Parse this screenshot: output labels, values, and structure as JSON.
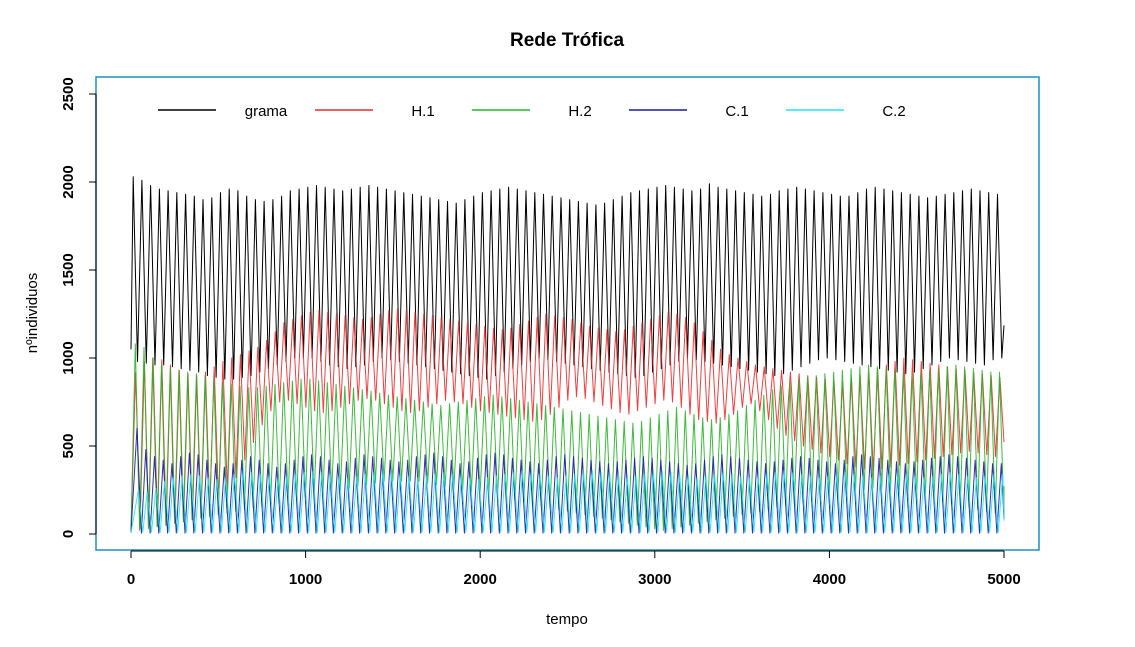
{
  "chart_data": {
    "type": "line",
    "title": "Rede Trófica",
    "xlabel": "tempo",
    "ylabel": "nºindividuos",
    "xlim": [
      0,
      5000
    ],
    "ylim": [
      0,
      2500
    ],
    "x_ticks": [
      "0",
      "1000",
      "2000",
      "3000",
      "4000",
      "5000"
    ],
    "y_ticks": [
      "0",
      "500",
      "1000",
      "1500",
      "2000",
      "2500"
    ],
    "grid": false,
    "legend_position": "top",
    "frame_color": "#1f8fc0",
    "series": [
      {
        "name": "grama",
        "color": "#000000",
        "period": 50,
        "t0": 0,
        "initial": 1050,
        "peaks": [
          2030,
          2010,
          1980,
          1960,
          1950,
          1940,
          1930,
          1920,
          1900,
          1910,
          1940,
          1960,
          1950,
          1920,
          1900,
          1890,
          1900,
          1920,
          1950,
          1960,
          1970,
          1980,
          1970,
          1960,
          1950,
          1960,
          1970,
          1980,
          1970,
          1960,
          1950,
          1940,
          1930,
          1920,
          1910,
          1900,
          1890,
          1880,
          1900,
          1920,
          1940,
          1950,
          1960,
          1970,
          1960,
          1950,
          1940,
          1930,
          1920,
          1910,
          1900,
          1890,
          1880,
          1870,
          1880,
          1900,
          1920,
          1940,
          1950,
          1960,
          1970,
          1980,
          1970,
          1960,
          1950,
          1960,
          1990,
          1970,
          1960,
          1950,
          1940,
          1930,
          1920,
          1930,
          1950,
          1960,
          1970,
          1960,
          1950,
          1940,
          1930,
          1920,
          1920,
          1940,
          1960,
          1970,
          1960,
          1950,
          1940,
          1930,
          1920,
          1910,
          1920,
          1930,
          1940,
          1950,
          1960,
          1950,
          1940,
          1930
        ],
        "troughs": [
          980,
          970,
          960,
          960,
          950,
          940,
          930,
          920,
          900,
          890,
          880,
          880,
          890,
          900,
          920,
          940,
          960,
          980,
          1000,
          1000,
          1000,
          980,
          960,
          950,
          940,
          950,
          960,
          980,
          1000,
          990,
          980,
          970,
          960,
          950,
          940,
          930,
          920,
          910,
          900,
          890,
          880,
          900,
          920,
          940,
          960,
          980,
          1000,
          990,
          980,
          970,
          960,
          950,
          940,
          930,
          920,
          910,
          900,
          890,
          900,
          920,
          940,
          960,
          980,
          1000,
          990,
          980,
          970,
          960,
          950,
          940,
          930,
          920,
          910,
          900,
          910,
          930,
          950,
          970,
          990,
          1000,
          990,
          980,
          970,
          960,
          950,
          940,
          930,
          920,
          910,
          920,
          940,
          960,
          980,
          1000,
          990,
          980,
          970,
          960,
          990,
          1000
        ]
      },
      {
        "name": "H.1",
        "color": "#ee2b2b",
        "period": 50,
        "t0": 14,
        "initial": 30,
        "peaks": [
          920,
          980,
          1000,
          990,
          960,
          930,
          910,
          900,
          920,
          950,
          980,
          1000,
          1020,
          1040,
          1060,
          1100,
          1150,
          1200,
          1220,
          1240,
          1260,
          1270,
          1260,
          1250,
          1240,
          1230,
          1220,
          1230,
          1250,
          1270,
          1280,
          1270,
          1260,
          1250,
          1240,
          1230,
          1220,
          1210,
          1200,
          1190,
          1180,
          1170,
          1160,
          1170,
          1190,
          1210,
          1230,
          1250,
          1240,
          1230,
          1220,
          1200,
          1180,
          1170,
          1160,
          1150,
          1160,
          1180,
          1200,
          1220,
          1240,
          1260,
          1250,
          1230,
          1200,
          1150,
          1100,
          1050,
          1020,
          1000,
          980,
          960,
          950,
          940,
          930,
          920,
          910,
          900,
          890,
          880,
          870,
          860,
          880,
          900,
          920,
          940,
          960,
          980,
          1000,
          990,
          980,
          970,
          960,
          950,
          940,
          930,
          920,
          910,
          900,
          890
        ],
        "troughs": [
          30,
          40,
          45,
          50,
          60,
          70,
          80,
          100,
          130,
          180,
          250,
          320,
          420,
          520,
          620,
          700,
          750,
          760,
          740,
          720,
          700,
          690,
          700,
          720,
          740,
          760,
          770,
          760,
          740,
          720,
          700,
          690,
          700,
          720,
          740,
          760,
          750,
          740,
          720,
          700,
          690,
          680,
          670,
          660,
          650,
          640,
          650,
          680,
          720,
          760,
          780,
          770,
          750,
          730,
          710,
          690,
          680,
          700,
          720,
          740,
          760,
          750,
          720,
          680,
          650,
          640,
          630,
          650,
          680,
          720,
          740,
          700,
          650,
          600,
          560,
          530,
          500,
          480,
          460,
          440,
          420,
          400,
          380,
          370,
          360,
          370,
          380,
          390,
          400,
          410,
          420,
          430,
          440,
          450,
          460,
          470,
          460,
          450,
          440,
          430
        ]
      },
      {
        "name": "H.2",
        "color": "#28b428",
        "period": 50,
        "t0": 12,
        "initial": 20,
        "peaks": [
          1080,
          1060,
          1000,
          960,
          940,
          930,
          920,
          910,
          900,
          880,
          860,
          850,
          840,
          830,
          830,
          840,
          850,
          860,
          870,
          880,
          880,
          870,
          860,
          850,
          840,
          830,
          820,
          810,
          800,
          790,
          780,
          770,
          760,
          750,
          740,
          730,
          740,
          750,
          760,
          770,
          780,
          790,
          780,
          770,
          760,
          750,
          740,
          730,
          720,
          710,
          700,
          690,
          680,
          670,
          660,
          650,
          640,
          630,
          640,
          660,
          680,
          700,
          720,
          700,
          680,
          660,
          650,
          660,
          680,
          700,
          730,
          760,
          790,
          820,
          840,
          860,
          880,
          890,
          900,
          910,
          920,
          930,
          940,
          950,
          960,
          950,
          940,
          930,
          920,
          910,
          920,
          930,
          940,
          950,
          960,
          950,
          940,
          930,
          920,
          920
        ],
        "troughs": [
          20,
          30,
          40,
          50,
          60,
          70,
          80,
          90,
          100,
          110,
          120,
          130,
          140,
          150,
          160,
          170,
          180,
          190,
          200,
          210,
          220,
          230,
          240,
          250,
          260,
          270,
          280,
          290,
          300,
          300,
          300,
          300,
          300,
          290,
          280,
          270,
          260,
          250,
          240,
          230,
          220,
          210,
          200,
          190,
          180,
          170,
          160,
          150,
          140,
          130,
          120,
          110,
          100,
          90,
          80,
          70,
          60,
          50,
          40,
          30,
          20,
          30,
          40,
          50,
          60,
          70,
          80,
          90,
          100,
          110,
          120,
          130,
          140,
          150,
          160,
          170,
          180,
          190,
          200,
          210,
          220,
          230,
          240,
          250,
          260,
          250,
          240,
          230,
          220,
          210,
          200,
          190,
          180,
          170,
          160,
          150,
          140,
          130,
          120,
          110
        ]
      },
      {
        "name": "C.1",
        "color": "#1a1aaa",
        "period": 50,
        "t0": 22,
        "initial": 10,
        "peaks": [
          600,
          480,
          440,
          420,
          400,
          440,
          460,
          450,
          420,
          400,
          380,
          400,
          420,
          440,
          420,
          400,
          380,
          400,
          420,
          440,
          450,
          440,
          420,
          400,
          410,
          430,
          450,
          440,
          430,
          420,
          410,
          420,
          440,
          450,
          460,
          440,
          420,
          400,
          410,
          430,
          450,
          460,
          450,
          430,
          420,
          410,
          400,
          420,
          440,
          450,
          440,
          430,
          420,
          410,
          400,
          410,
          420,
          430,
          440,
          430,
          420,
          410,
          400,
          390,
          400,
          420,
          440,
          450,
          440,
          430,
          420,
          410,
          400,
          410,
          420,
          430,
          440,
          430,
          420,
          410,
          400,
          420,
          440,
          450,
          440,
          430,
          420,
          410,
          400,
          410,
          420,
          430,
          440,
          450,
          440,
          430,
          420,
          410,
          400,
          400
        ],
        "troughs": [
          5,
          5,
          5,
          5,
          5,
          5,
          5,
          5,
          5,
          5,
          5,
          5,
          5,
          5,
          5,
          5,
          5,
          5,
          5,
          5,
          5,
          5,
          5,
          5,
          5,
          5,
          5,
          5,
          5,
          5,
          5,
          5,
          5,
          5,
          5,
          5,
          5,
          5,
          5,
          5,
          5,
          5,
          5,
          5,
          5,
          5,
          5,
          5,
          5,
          5,
          5,
          5,
          5,
          5,
          5,
          5,
          5,
          5,
          5,
          5,
          5,
          5,
          5,
          5,
          5,
          5,
          5,
          5,
          5,
          5,
          5,
          5,
          5,
          5,
          5,
          5,
          5,
          5,
          5,
          5,
          5,
          5,
          5,
          5,
          5,
          5,
          5,
          5,
          5,
          5,
          5,
          5,
          5,
          5,
          5,
          5,
          5,
          5,
          5,
          5
        ]
      },
      {
        "name": "C.2",
        "color": "#22e6f0",
        "period": 50,
        "t0": 30,
        "initial": 5,
        "peaks": [
          250,
          240,
          260,
          300,
          320,
          330,
          340,
          330,
          320,
          310,
          320,
          340,
          360,
          350,
          340,
          330,
          320,
          330,
          340,
          350,
          360,
          350,
          340,
          330,
          320,
          330,
          340,
          350,
          360,
          350,
          340,
          330,
          320,
          330,
          340,
          350,
          340,
          330,
          320,
          310,
          320,
          330,
          340,
          350,
          360,
          350,
          340,
          330,
          320,
          330,
          340,
          350,
          360,
          350,
          340,
          330,
          320,
          330,
          340,
          350,
          360,
          350,
          340,
          330,
          320,
          330,
          340,
          350,
          340,
          330,
          320,
          330,
          340,
          350,
          360,
          350,
          340,
          330,
          320,
          330,
          340,
          350,
          340,
          330,
          320,
          330,
          340,
          350,
          340,
          330,
          320,
          330,
          340,
          350,
          340,
          330,
          320,
          330,
          340,
          340
        ],
        "troughs": [
          10,
          10,
          10,
          10,
          10,
          10,
          10,
          10,
          10,
          10,
          10,
          10,
          10,
          10,
          10,
          10,
          10,
          10,
          10,
          10,
          10,
          10,
          10,
          10,
          10,
          10,
          10,
          10,
          10,
          10,
          10,
          10,
          10,
          10,
          10,
          10,
          10,
          10,
          10,
          10,
          10,
          10,
          10,
          10,
          10,
          10,
          10,
          10,
          10,
          10,
          10,
          10,
          10,
          10,
          10,
          10,
          10,
          10,
          10,
          10,
          10,
          10,
          10,
          10,
          10,
          10,
          10,
          10,
          10,
          10,
          10,
          10,
          10,
          10,
          10,
          10,
          10,
          10,
          10,
          10,
          10,
          10,
          10,
          10,
          10,
          10,
          10,
          10,
          10,
          10,
          10,
          10,
          10,
          10,
          10,
          10,
          10,
          10,
          10,
          10
        ]
      }
    ]
  }
}
